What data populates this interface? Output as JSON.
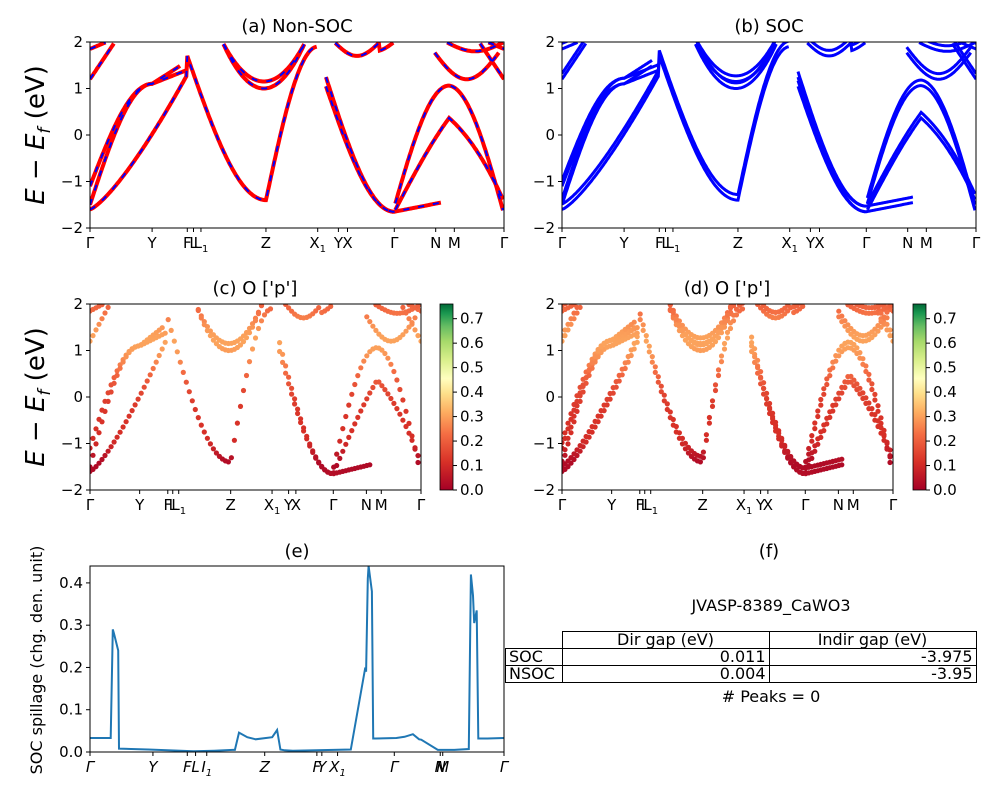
{
  "figure": {
    "ylabel_band": "$E - E_f$ (eV)",
    "ylabel_spillage": "SOC spillage (chg. den. unit)",
    "band_ticks": [
      "Γ",
      "Y",
      "F",
      "L",
      "L1",
      "Z",
      "X1",
      "Y",
      "X",
      "Γ",
      "N",
      "M",
      "Γ"
    ],
    "spillage_ticks": [
      "Γ",
      "Y",
      "F",
      "L",
      "I1",
      "Z",
      "F",
      "Y",
      "X1",
      "Γ",
      "N",
      "M",
      "Γ"
    ],
    "colorbar_ticks": [
      "0.0",
      "0.1",
      "0.2",
      "0.3",
      "0.4",
      "0.5",
      "0.6",
      "0.7"
    ]
  },
  "panels": {
    "a": {
      "title": "(a) Non-SOC"
    },
    "b": {
      "title": "(b) SOC"
    },
    "c": {
      "title": "(c)  O ['p']"
    },
    "d": {
      "title": "(d) O ['p']"
    },
    "e": {
      "title": "(e)"
    },
    "f": {
      "title": "(f)"
    }
  },
  "table": {
    "title": "JVASP-8389_CaWO3",
    "headers": [
      "",
      "Dir gap (eV)",
      "Indir gap (eV)"
    ],
    "rows": [
      {
        "label": "SOC",
        "dir": "0.011",
        "indir": "-3.975"
      },
      {
        "label": "NSOC",
        "dir": "0.004",
        "indir": "-3.95"
      }
    ],
    "peaks": "# Peaks = 0"
  },
  "chart_data": [
    {
      "type": "line",
      "title": "(a) Non-SOC",
      "ylabel": "E − E_f (eV)",
      "ylim": [
        -2,
        2
      ],
      "yticks": [
        -2,
        -1,
        0,
        1,
        2
      ],
      "series": [
        {
          "color": "#ff0000",
          "style": "solid",
          "bands": "Non-SOC"
        },
        {
          "color": "#0000ff",
          "style": "dashed",
          "bands": "SOC overlay"
        }
      ]
    },
    {
      "type": "line",
      "title": "(b) SOC",
      "ylim": [
        -2,
        2
      ],
      "yticks": [
        -2,
        -1,
        0,
        1,
        2
      ],
      "series": [
        {
          "color": "#0000ff",
          "style": "solid"
        }
      ]
    },
    {
      "type": "scatter",
      "title": "(c)  O ['p']",
      "ylim": [
        -2,
        2
      ],
      "colormap": "RdYlGn",
      "clim": [
        0,
        0.75
      ]
    },
    {
      "type": "scatter",
      "title": "(d) O ['p']",
      "ylim": [
        -2,
        2
      ],
      "colormap": "RdYlGn",
      "clim": [
        0,
        0.75
      ]
    },
    {
      "type": "line",
      "title": "(e)",
      "ylabel": "SOC spillage (chg. den. unit)",
      "ylim": [
        0,
        0.44
      ],
      "yticks": [
        0.0,
        0.1,
        0.2,
        0.3,
        0.4
      ],
      "x": [
        0,
        0.05,
        0.05,
        0.055,
        0.058,
        0.068,
        0.07,
        0.14,
        0.25,
        0.3,
        0.345,
        0.35,
        0.36,
        0.38,
        0.4,
        0.44,
        0.452,
        0.46,
        0.47,
        0.49,
        0.63,
        0.665,
        0.667,
        0.671,
        0.673,
        0.681,
        0.684,
        0.69,
        0.74,
        0.76,
        0.78,
        0.795,
        0.8,
        0.84,
        0.88,
        0.915,
        0.92,
        0.925,
        0.928,
        0.934,
        0.938,
        0.96,
        1.0
      ],
      "y": [
        0.033,
        0.033,
        0.033,
        0.29,
        0.28,
        0.24,
        0.008,
        0.006,
        0.002,
        0.003,
        0.005,
        0.005,
        0.046,
        0.035,
        0.03,
        0.035,
        0.052,
        0.006,
        0.004,
        0.003,
        0.006,
        0.2,
        0.19,
        0.41,
        0.44,
        0.38,
        0.032,
        0.032,
        0.033,
        0.036,
        0.042,
        0.03,
        0.029,
        0.005,
        0.005,
        0.007,
        0.42,
        0.37,
        0.305,
        0.335,
        0.032,
        0.032,
        0.033
      ]
    }
  ]
}
